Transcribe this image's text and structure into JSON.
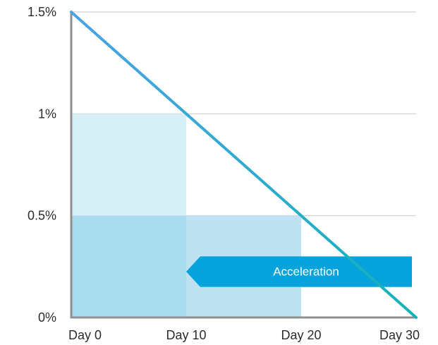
{
  "chart_data": {
    "type": "line",
    "title": "",
    "xlabel": "",
    "ylabel": "",
    "x_ticks": [
      {
        "value": 0,
        "label": "Day 0"
      },
      {
        "value": 10,
        "label": "Day 10"
      },
      {
        "value": 20,
        "label": "Day 20"
      },
      {
        "value": 30,
        "label": "Day 30"
      }
    ],
    "y_ticks": [
      {
        "value": 0,
        "label": "0%"
      },
      {
        "value": 0.5,
        "label": "0.5%"
      },
      {
        "value": 1,
        "label": "1%"
      },
      {
        "value": 1.5,
        "label": "1.5%"
      }
    ],
    "xlim": [
      0,
      30
    ],
    "ylim": [
      0,
      1.5
    ],
    "grid": true,
    "series": [
      {
        "x": [
          0,
          30
        ],
        "y": [
          1.5,
          0
        ],
        "color": "#3da0e0"
      }
    ],
    "regions": [
      {
        "x": [
          0,
          10
        ],
        "y": [
          0,
          1
        ],
        "color": "#d6f0f5"
      },
      {
        "x": [
          10,
          20
        ],
        "y": [
          0,
          0.5
        ],
        "color": "#bfe2f2"
      },
      {
        "x": [
          0,
          10
        ],
        "y": [
          0,
          0.5
        ],
        "color": "#a6dced"
      }
    ],
    "annotation": {
      "text": "Acceleration",
      "x": [
        10,
        30
      ],
      "y": [
        0.15,
        0.3
      ],
      "direction": "left",
      "color": "#05a3dc"
    },
    "colors": {
      "axis": "#8f8f8f",
      "grid": "#d9d9d9",
      "line_start": "#4aa3e6",
      "line_end": "#12b3b8"
    }
  }
}
